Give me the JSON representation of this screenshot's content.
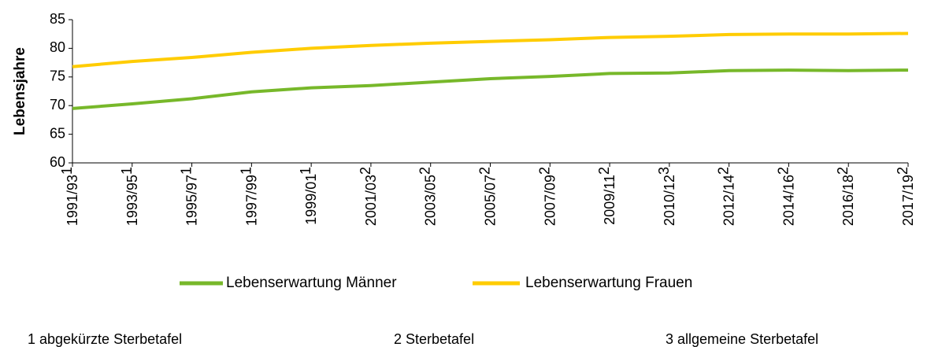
{
  "chart_data": {
    "type": "line",
    "ylabel": "Lebensjahre",
    "categories": [
      "1991/93",
      "1993/95",
      "1995/97",
      "1997/99",
      "1999/01",
      "2001/03",
      "2003/05",
      "2005/07",
      "2007/09",
      "2009/11",
      "2010/12",
      "2012/14",
      "2014/16",
      "2016/18",
      "2017/19"
    ],
    "category_notes": [
      "1",
      "1",
      "1",
      "1",
      "1",
      "2",
      "2",
      "2",
      "2",
      "2",
      "3",
      "2",
      "2",
      "2",
      "2"
    ],
    "series": [
      {
        "name": "Lebenserwartung Männer",
        "color": "#77b82a",
        "values": [
          69.5,
          70.3,
          71.2,
          72.4,
          73.1,
          73.5,
          74.1,
          74.7,
          75.1,
          75.6,
          75.7,
          76.1,
          76.2,
          76.1,
          76.2
        ]
      },
      {
        "name": "Lebenserwartung Frauen",
        "color": "#ffcc00",
        "values": [
          76.8,
          77.7,
          78.4,
          79.3,
          80.0,
          80.5,
          80.9,
          81.2,
          81.5,
          81.9,
          82.1,
          82.4,
          82.5,
          82.5,
          82.6
        ]
      }
    ],
    "ylim": [
      60,
      85
    ],
    "yticks": [
      60,
      65,
      70,
      75,
      80,
      85
    ],
    "grid": false,
    "legend": "bottom",
    "footnotes": [
      "1 abgekürzte Sterbetafel",
      "2 Sterbetafel",
      "3 allgemeine Sterbetafel"
    ]
  }
}
